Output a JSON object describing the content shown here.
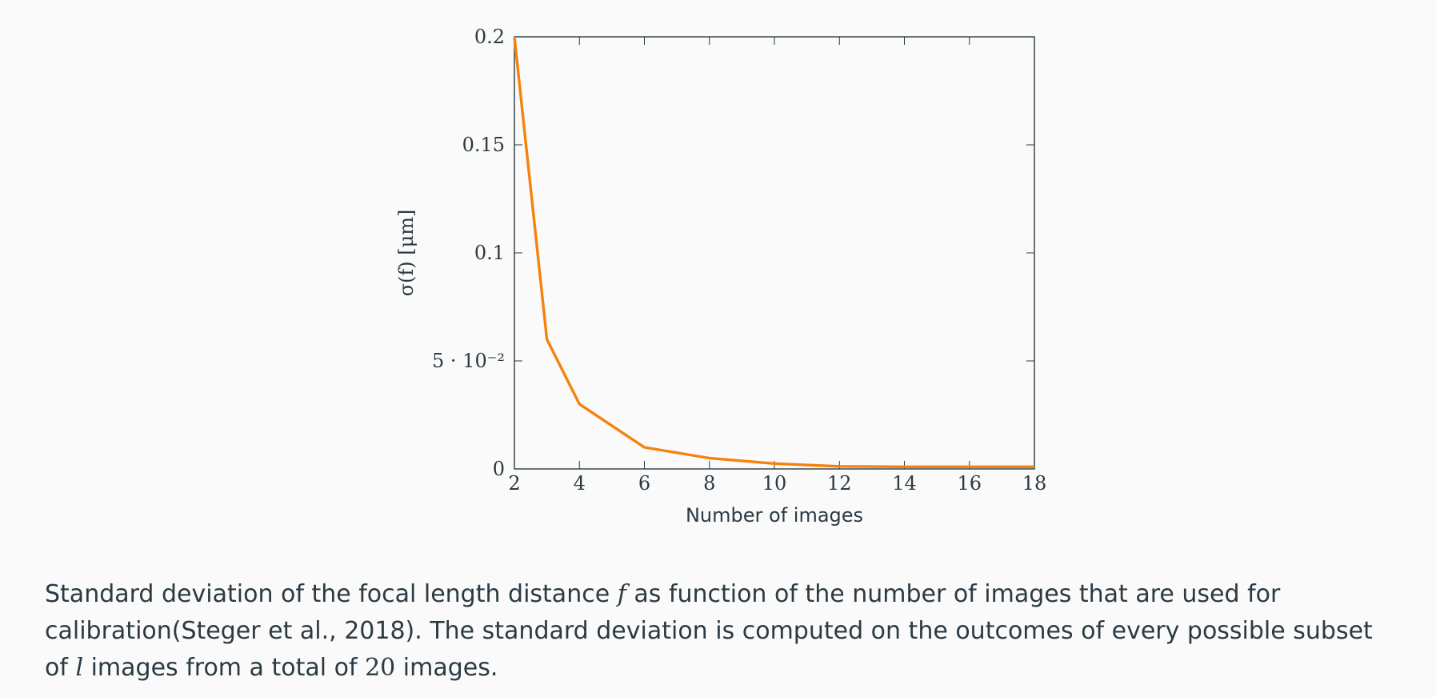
{
  "chart_data": {
    "type": "line",
    "xlabel": "Number of images",
    "ylabel": "σ(f) [μm]",
    "x": [
      2,
      3,
      4,
      6,
      8,
      10,
      12,
      14,
      16,
      18
    ],
    "series": [
      {
        "values": [
          0.2,
          0.06,
          0.03,
          0.01,
          0.005,
          0.0025,
          0.0012,
          0.001,
          0.001,
          0.001
        ]
      }
    ],
    "xlim": [
      2,
      18
    ],
    "ylim": [
      0,
      0.2
    ],
    "xticks": [
      2,
      4,
      6,
      8,
      10,
      12,
      14,
      16,
      18
    ],
    "xtick_labels": [
      "2",
      "4",
      "6",
      "8",
      "10",
      "12",
      "14",
      "16",
      "18"
    ],
    "yticks": [
      0,
      0.05,
      0.1,
      0.15,
      0.2
    ],
    "ytick_labels": [
      "0",
      "5 · 10⁻²",
      "0.1",
      "0.15",
      "0.2"
    ],
    "grid": false,
    "line_color": "#f5820d",
    "axis_color": "#2b3a42"
  },
  "caption": {
    "part1": "Standard deviation of the focal length distance ",
    "var_f": "f",
    "part2": " as function of the number of images that are used for calibration(Steger et al., 2018). The standard deviation is computed on the outcomes of every possible subset of ",
    "var_l": "l",
    "part3": " images from a total of ",
    "num": "20",
    "part4": " images."
  }
}
